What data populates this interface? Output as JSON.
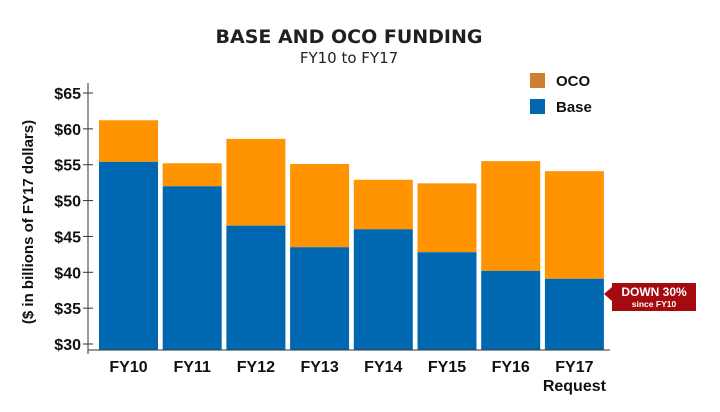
{
  "chart_data": {
    "type": "bar",
    "stacked": true,
    "title": "BASE AND OCO FUNDING",
    "subtitle": "FY10 to FY17",
    "xlabel": "",
    "ylabel": "($ in billions of FY17 dollars)",
    "ylim": [
      29,
      66
    ],
    "yticks": [
      30,
      35,
      40,
      45,
      50,
      55,
      60,
      65
    ],
    "ytick_labels": [
      "$30",
      "$35",
      "$40",
      "$45",
      "$50",
      "$55",
      "$60",
      "$65"
    ],
    "categories": [
      "FY10",
      "FY11",
      "FY12",
      "FY13",
      "FY14",
      "FY15",
      "FY16",
      "FY17"
    ],
    "category_sublabels": [
      "",
      "",
      "",
      "",
      "",
      "",
      "",
      "Request"
    ],
    "series": [
      {
        "name": "Base",
        "color": "#0068b0",
        "values": [
          55.4,
          52.0,
          46.5,
          43.5,
          46.0,
          42.8,
          40.2,
          39.1
        ]
      },
      {
        "name": "OCO",
        "color": "#ff9300",
        "totals": [
          61.2,
          55.2,
          58.6,
          55.1,
          52.9,
          52.4,
          55.5,
          54.1
        ],
        "values": [
          5.8,
          3.2,
          12.1,
          11.6,
          6.9,
          9.6,
          15.3,
          15.0
        ]
      }
    ],
    "legend": {
      "position": "top-right",
      "entries": [
        {
          "label": "OCO",
          "color": "#cc7f33"
        },
        {
          "label": "Base",
          "color": "#0068b0"
        }
      ]
    },
    "annotation": {
      "line1": "DOWN 30%",
      "line2": "since FY10",
      "color": "#a50a0e",
      "target_category": "FY17"
    },
    "grid": false
  }
}
